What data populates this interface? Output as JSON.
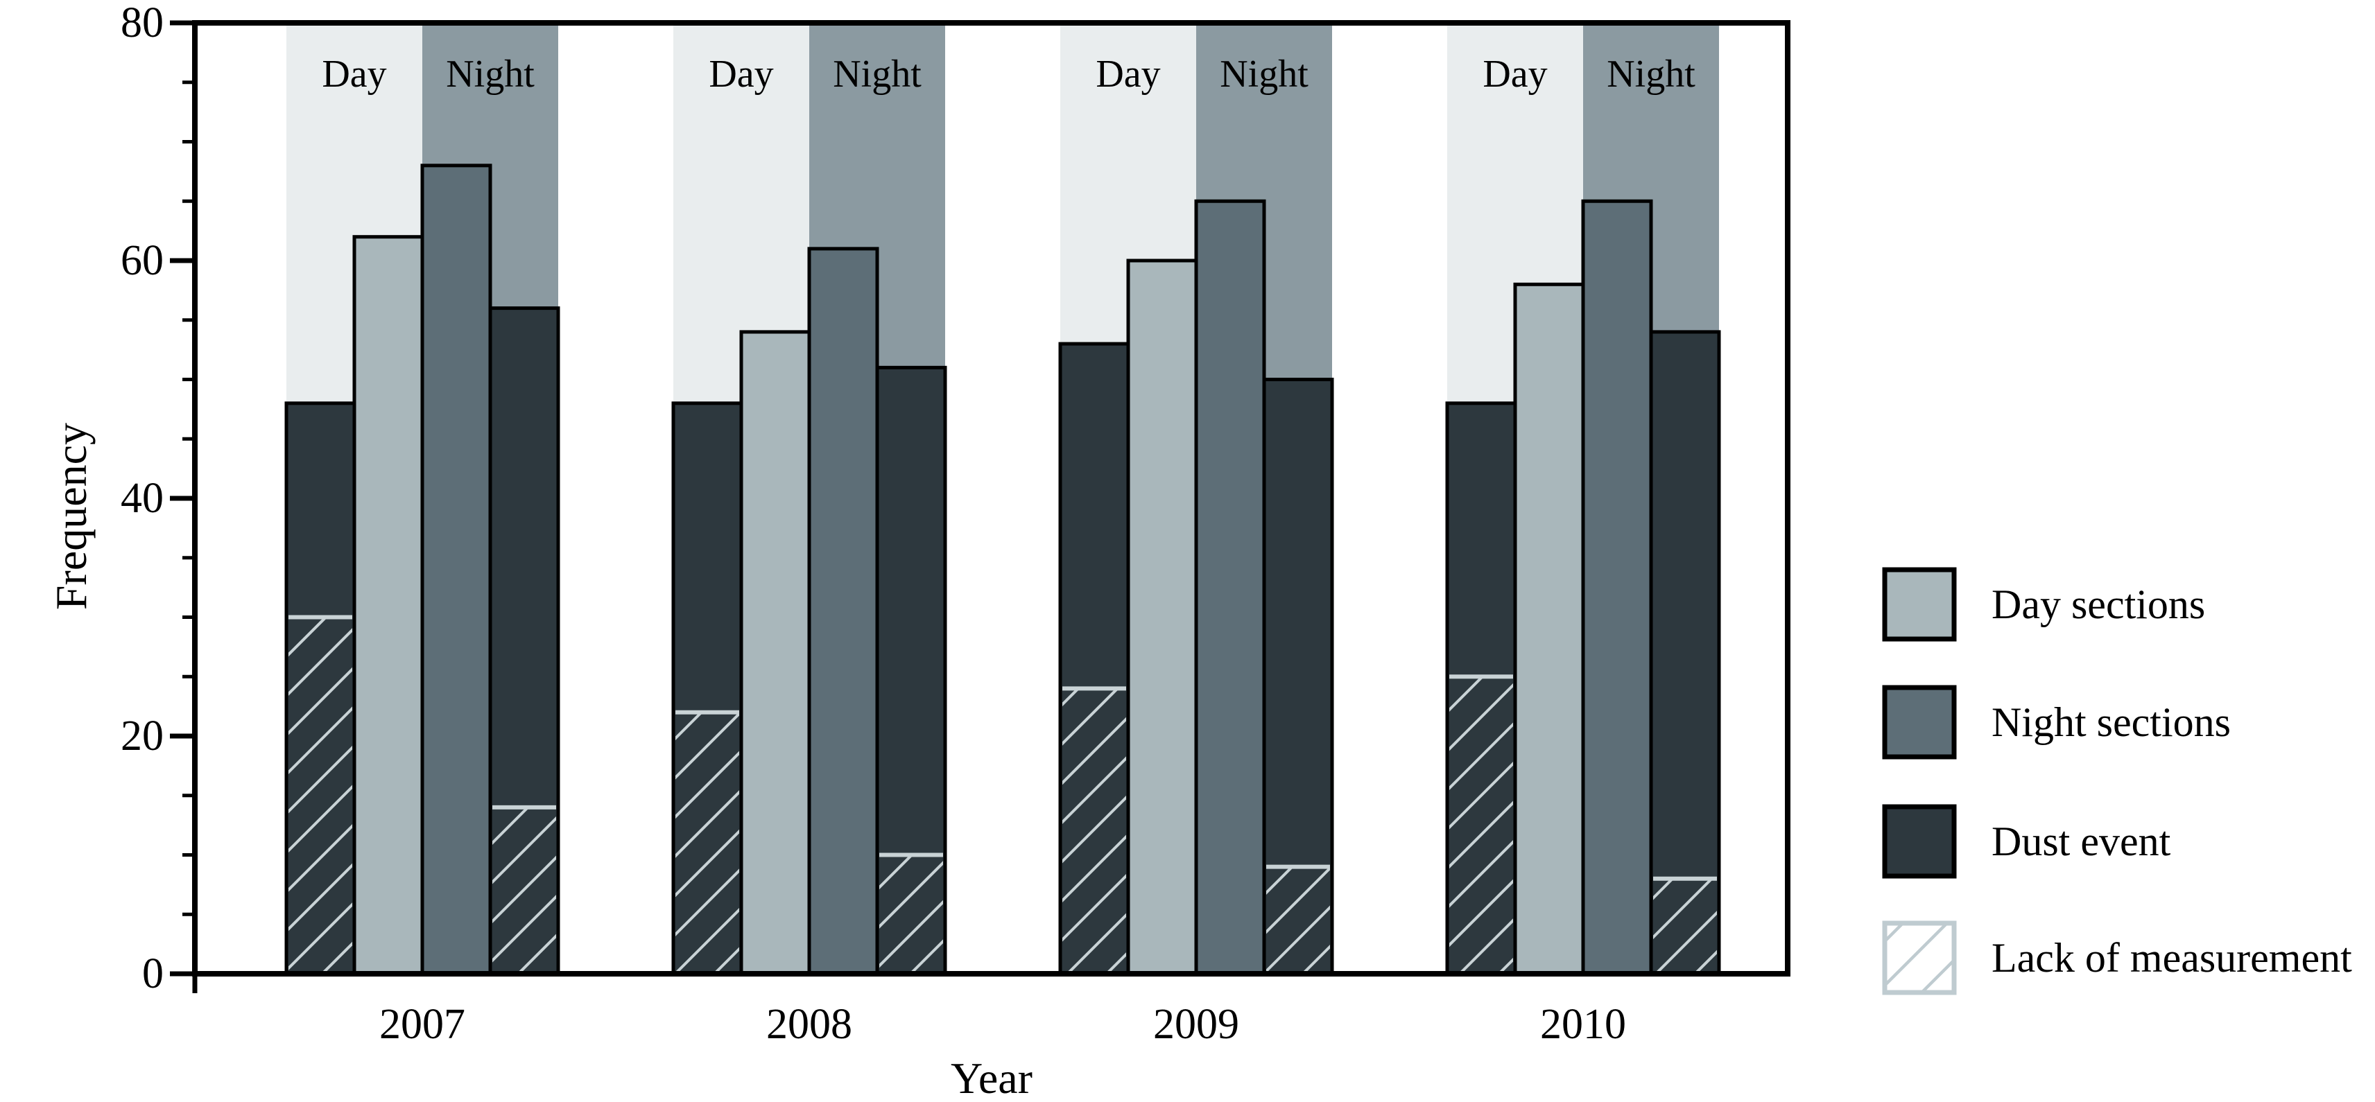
{
  "chart_data": {
    "type": "bar",
    "title": "",
    "xlabel": "Year",
    "ylabel": "Frequency",
    "ylim": [
      0,
      80
    ],
    "y_major_ticks": [
      0,
      20,
      40,
      60,
      80
    ],
    "y_minor_tick_step": 5,
    "grid": false,
    "legend_position": "right-outside",
    "categories": [
      "2007",
      "2008",
      "2009",
      "2010"
    ],
    "band_labels": [
      "Day",
      "Night"
    ],
    "series": [
      {
        "name": "Dust event (day)",
        "values": [
          48,
          48,
          53,
          48
        ]
      },
      {
        "name": "Day sections",
        "values": [
          62,
          54,
          60,
          58
        ]
      },
      {
        "name": "Night sections",
        "values": [
          68,
          61,
          65,
          65
        ]
      },
      {
        "name": "Dust event (night)",
        "values": [
          56,
          51,
          50,
          54
        ]
      },
      {
        "name": "Lack of measurement (day)",
        "values": [
          30,
          22,
          24,
          25
        ]
      },
      {
        "name": "Lack of measurement (night)",
        "values": [
          14,
          10,
          9,
          8
        ]
      }
    ],
    "legend": [
      {
        "label": "Day sections",
        "swatch": "day"
      },
      {
        "label": "Night sections",
        "swatch": "night"
      },
      {
        "label": "Dust event",
        "swatch": "dust"
      },
      {
        "label": "Lack of measurement",
        "swatch": "hatch"
      }
    ],
    "colors": {
      "day_band_bg": "#e9edee",
      "night_band_bg": "#8b9aa1",
      "day_sections": "#a9b7bb",
      "night_sections": "#5d6e77",
      "dust_event": "#2d383e",
      "hatch_line": "#c9d3d6",
      "legend_hatch": "#bfcbd0",
      "frame": "#000000",
      "text": "#000000"
    }
  }
}
